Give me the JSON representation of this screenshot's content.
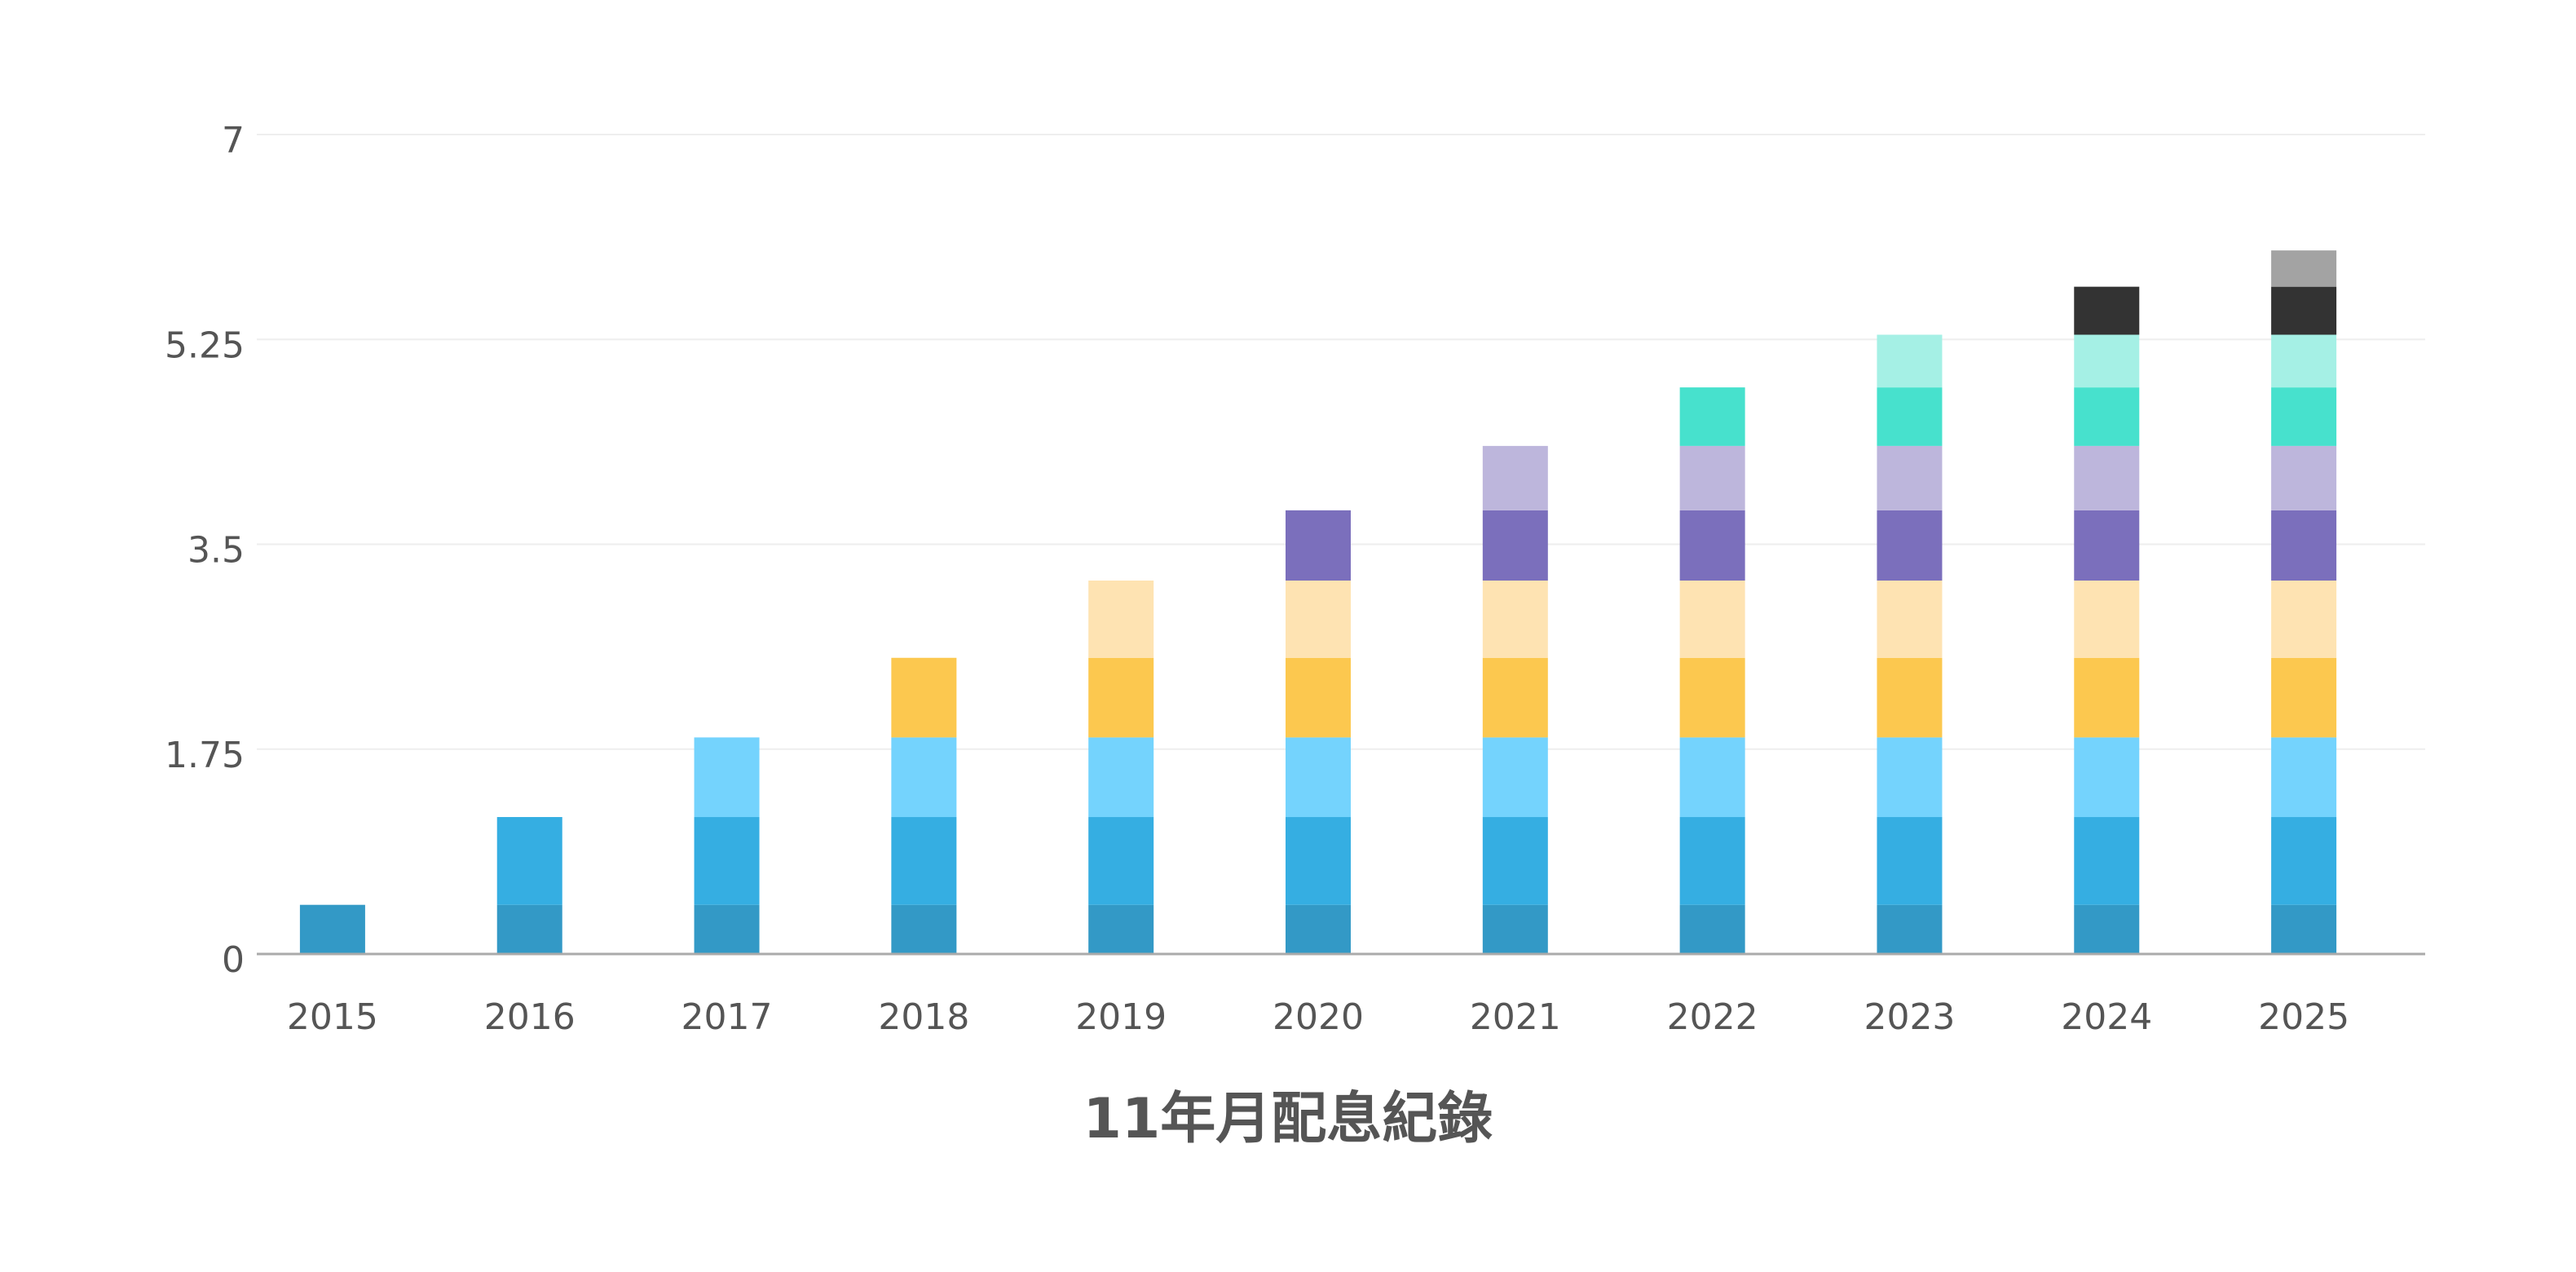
{
  "chart_data": {
    "type": "bar",
    "stacked": true,
    "title": "11年月配息紀錄",
    "xlabel": "",
    "ylabel": "",
    "ylim": [
      0,
      7
    ],
    "yticks": [
      "0",
      "1.75",
      "3.5",
      "5.25",
      "7"
    ],
    "grid": true,
    "legend": "none",
    "categories": [
      "2015",
      "2016",
      "2017",
      "2018",
      "2019",
      "2020",
      "2021",
      "2022",
      "2023",
      "2024",
      "2025"
    ],
    "series": [
      {
        "color": "#3399c6",
        "values": [
          0.42,
          0.42,
          0.42,
          0.42,
          0.42,
          0.42,
          0.42,
          0.42,
          0.42,
          0.42,
          0.42
        ]
      },
      {
        "color": "#35aee2",
        "values": [
          0,
          0.75,
          0.75,
          0.75,
          0.75,
          0.75,
          0.75,
          0.75,
          0.75,
          0.75,
          0.75
        ]
      },
      {
        "color": "#74d3fd",
        "values": [
          0,
          0,
          0.68,
          0.68,
          0.68,
          0.68,
          0.68,
          0.68,
          0.68,
          0.68,
          0.68
        ]
      },
      {
        "color": "#fcc84f",
        "values": [
          0,
          0,
          0,
          0.68,
          0.68,
          0.68,
          0.68,
          0.68,
          0.68,
          0.68,
          0.68
        ]
      },
      {
        "color": "#fee3b2",
        "values": [
          0,
          0,
          0,
          0,
          0.66,
          0.66,
          0.66,
          0.66,
          0.66,
          0.66,
          0.66
        ]
      },
      {
        "color": "#7b6fbc",
        "values": [
          0,
          0,
          0,
          0,
          0,
          0.6,
          0.6,
          0.6,
          0.6,
          0.6,
          0.6
        ]
      },
      {
        "color": "#bdb6dc",
        "values": [
          0,
          0,
          0,
          0,
          0,
          0,
          0.55,
          0.55,
          0.55,
          0.55,
          0.55
        ]
      },
      {
        "color": "#47e1cd",
        "values": [
          0,
          0,
          0,
          0,
          0,
          0,
          0,
          0.5,
          0.5,
          0.5,
          0.5
        ]
      },
      {
        "color": "#a5f0e5",
        "values": [
          0,
          0,
          0,
          0,
          0,
          0,
          0,
          0,
          0.45,
          0.45,
          0.45
        ]
      },
      {
        "color": "#333333",
        "values": [
          0,
          0,
          0,
          0,
          0,
          0,
          0,
          0,
          0,
          0.41,
          0.41
        ]
      },
      {
        "color": "#a3a3a3",
        "values": [
          0,
          0,
          0,
          0,
          0,
          0,
          0,
          0,
          0,
          0,
          0.31
        ]
      }
    ]
  }
}
